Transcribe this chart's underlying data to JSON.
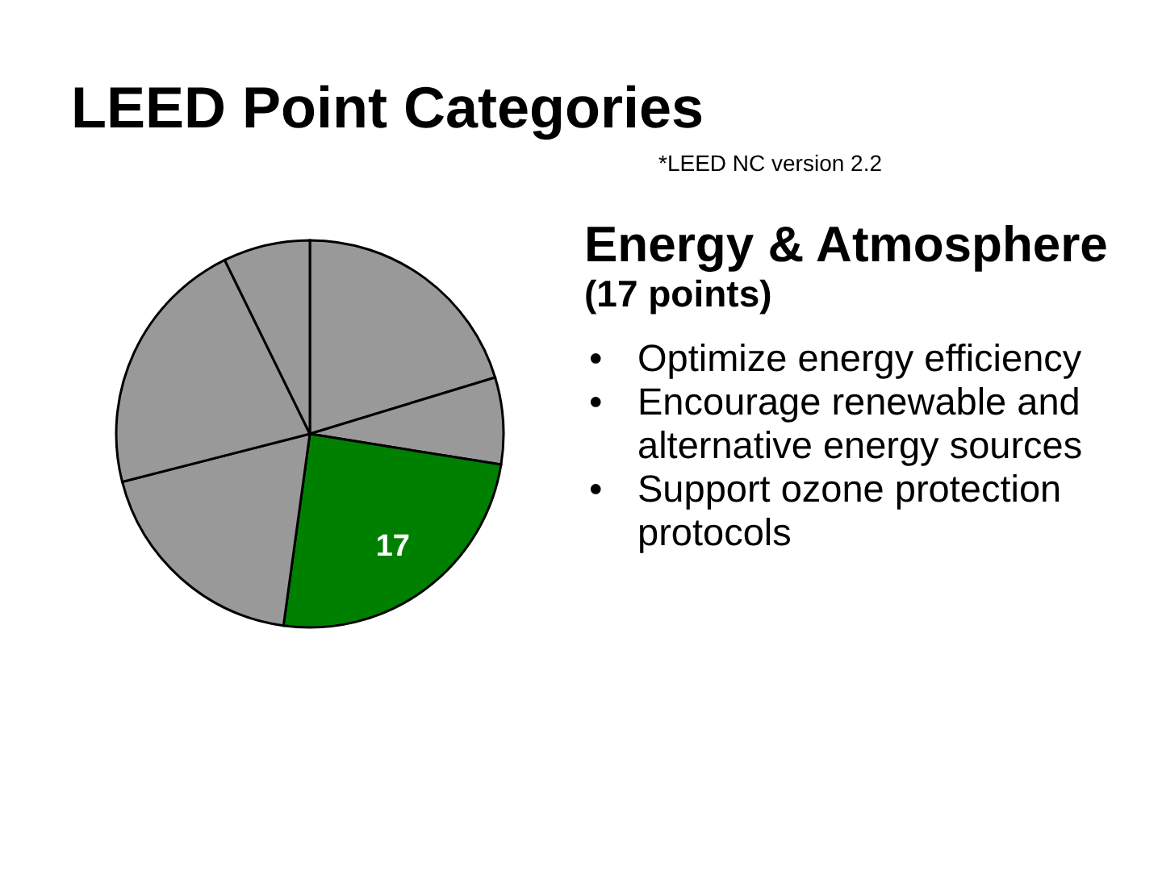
{
  "chart_data": {
    "type": "pie",
    "title": "LEED Point Categories",
    "subtitle": "*LEED NC version 2.2",
    "categories": [
      null,
      null,
      null,
      null,
      null,
      null
    ],
    "values": [
      14,
      5,
      17,
      13,
      15,
      5
    ],
    "colors": [
      "#999999",
      "#999999",
      "#008000",
      "#999999",
      "#999999",
      "#999999"
    ],
    "value_labels": [
      null,
      null,
      "17",
      null,
      null,
      null
    ],
    "annotations": [
      "Energy & Atmosphere",
      "(17 points)",
      "• Optimize energy efficiency",
      "• Encourage renewable and alternative energy sources",
      "• Support ozone protection protocols"
    ]
  }
}
